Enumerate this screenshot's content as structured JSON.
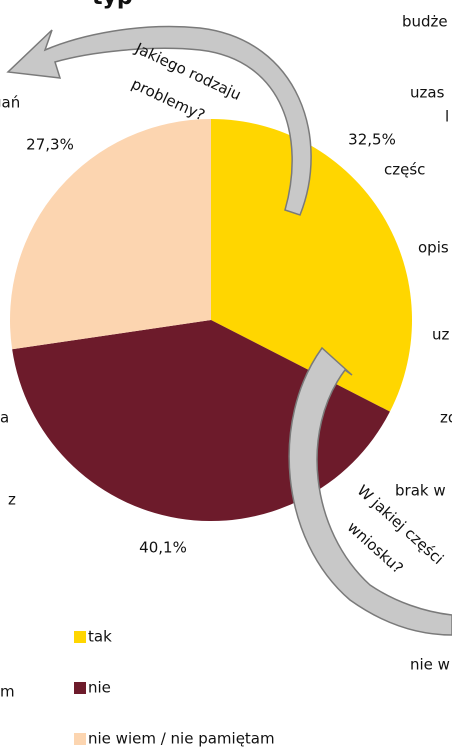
{
  "chart_data": {
    "type": "pie",
    "title": "typ",
    "categories": [
      "tak",
      "nie",
      "nie wiem / nie pamiętam"
    ],
    "values": [
      32.5,
      40.1,
      27.3
    ],
    "value_labels": [
      "32,5%",
      "40,1%",
      "27,3%"
    ],
    "colors": [
      "#ffd600",
      "#6d1b2b",
      "#fcd5b0"
    ],
    "arrow_labels": [
      [
        "Jakiego rodzaju",
        "problemy?"
      ],
      [
        "W jakiej części",
        "wniosku?"
      ]
    ],
    "fragments": [
      "budże",
      "uzas",
      "l",
      "częśc",
      "opis",
      "uz",
      "zo",
      "brak w",
      "nie w",
      "gań",
      "a",
      "z",
      "m"
    ]
  }
}
